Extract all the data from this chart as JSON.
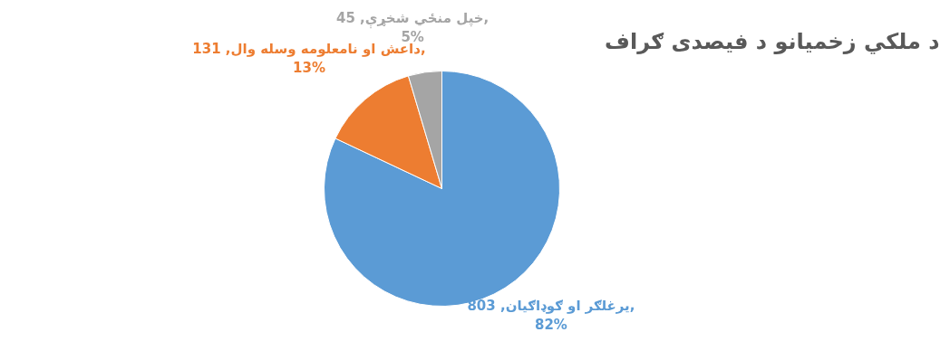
{
  "chart_data": {
    "type": "pie",
    "title": "د ملكي زخميانو د فيصدی ګراف",
    "categories": [
      "يرغلګر او ګوډاګيان",
      "داعش او نامعلومه وسله وال",
      "خپل منځي شخړې"
    ],
    "values": [
      803,
      131,
      45
    ],
    "colors": [
      "#5b9bd5",
      "#ed7d31",
      "#a5a5a5"
    ],
    "data_labels": true,
    "value_labels": [
      "803, 82%",
      "131, 13%",
      "45, 5%"
    ]
  }
}
